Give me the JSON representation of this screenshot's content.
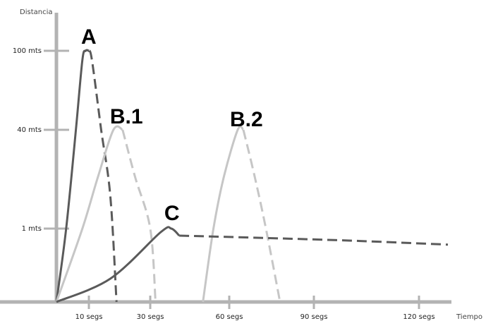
{
  "chart_data": {
    "type": "line",
    "xlabel": "Tiempo",
    "ylabel": "Distancia",
    "x_ticks": [
      {
        "value": 10,
        "label": "10 segs"
      },
      {
        "value": 30,
        "label": "30 segs"
      },
      {
        "value": 60,
        "label": "60 segs"
      },
      {
        "value": 90,
        "label": "90 segs"
      },
      {
        "value": 120,
        "label": "120 segs"
      }
    ],
    "y_ticks": [
      {
        "value": 1,
        "label": "1 mts"
      },
      {
        "value": 40,
        "label": "40 mts"
      },
      {
        "value": 100,
        "label": "100 mts"
      }
    ],
    "y_scale": "non-linear (tick marks only)",
    "grid": false,
    "series": [
      {
        "name": "A",
        "color": "#5a5a5a",
        "segments": [
          {
            "style": "solid",
            "x": [
              0,
              3,
              6,
              8,
              9,
              10
            ],
            "y": [
              0,
              1,
              40,
              90,
              100,
              100
            ]
          },
          {
            "style": "dashed",
            "x": [
              10,
              11,
              14,
              17,
              19
            ],
            "y": [
              100,
              90,
              40,
              8,
              0
            ]
          }
        ]
      },
      {
        "name": "B.1",
        "color": "#c6c6c6",
        "segments": [
          {
            "style": "solid",
            "x": [
              0,
              8,
              13,
              18,
              21
            ],
            "y": [
              0,
              1,
              16,
              40,
              40
            ]
          },
          {
            "style": "dashed",
            "x": [
              21,
              25,
              30,
              32
            ],
            "y": [
              40,
              16,
              1,
              0
            ]
          }
        ]
      },
      {
        "name": "B.2",
        "color": "#c6c6c6",
        "segments": [
          {
            "style": "solid",
            "x": [
              50,
              54,
              58,
              63,
              65
            ],
            "y": [
              0,
              1,
              16,
              40,
              40
            ]
          },
          {
            "style": "dashed",
            "x": [
              65,
              69,
              73,
              78
            ],
            "y": [
              40,
              16,
              1,
              0
            ]
          }
        ]
      },
      {
        "name": "C",
        "color": "#5a5a5a",
        "segments": [
          {
            "style": "solid",
            "x": [
              0,
              17,
              34,
              38,
              41
            ],
            "y": [
              0,
              0.3,
              0.9,
              1,
              0.8
            ]
          },
          {
            "style": "dashed",
            "x": [
              41,
              70,
              100,
              130
            ],
            "y": [
              0.8,
              0.77,
              0.73,
              0.68
            ]
          }
        ]
      }
    ]
  }
}
